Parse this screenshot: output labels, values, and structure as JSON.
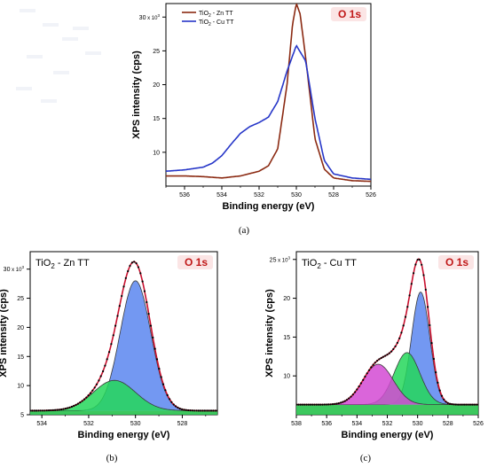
{
  "panel_captions": [
    "(a)",
    "(b)",
    "(c)"
  ],
  "colors": {
    "zn_line": "#8b2a12",
    "cu_line": "#2636c8",
    "fit_total": "#c8102e",
    "peak_main": "#5b86f0",
    "peak_green": "#25d75a",
    "peak_magenta": "#d44ad4",
    "baseline_green": "#28c24c",
    "o1s_text": "#c01818",
    "o1s_bg": "#fbe5e5"
  },
  "chart_data": [
    {
      "id": "a",
      "type": "line",
      "title": "",
      "label": "O 1s",
      "xlabel": "Binding energy (eV)",
      "ylabel": "XPS intensity (cps)",
      "y_multiplier": "x 10",
      "y_exponent": "3",
      "xlim": [
        537,
        526
      ],
      "ylim": [
        5,
        32
      ],
      "x_ticks": [
        536,
        534,
        532,
        530,
        528,
        526
      ],
      "y_ticks": [
        10,
        15,
        20,
        25,
        30
      ],
      "legend": [
        {
          "name": "TiO2 - Zn TT",
          "base": "TiO",
          "sub": "2",
          "rest": " - Zn TT",
          "color": "#8b2a12"
        },
        {
          "name": "TiO2 - Cu TT",
          "base": "TiO",
          "sub": "2",
          "rest": " - Cu TT",
          "color": "#2636c8"
        }
      ],
      "series": [
        {
          "name": "TiO2 - Zn TT",
          "color": "#8b2a12",
          "x": [
            537,
            536,
            535,
            534,
            533,
            532,
            531.5,
            531,
            530.5,
            530.2,
            530,
            529.8,
            529.5,
            529,
            528.5,
            528,
            527,
            526
          ],
          "y": [
            6.5,
            6.5,
            6.4,
            6.2,
            6.5,
            7.2,
            8.0,
            10.5,
            20.0,
            29.0,
            32.0,
            30.5,
            24.0,
            12.0,
            7.5,
            6.2,
            5.8,
            5.7
          ]
        },
        {
          "name": "TiO2 - Cu TT",
          "color": "#2636c8",
          "x": [
            537,
            536,
            535,
            534.5,
            534,
            533.5,
            533,
            532.5,
            532,
            531.5,
            531,
            530.5,
            530,
            529.5,
            529,
            528.5,
            528,
            527,
            526
          ],
          "y": [
            7.2,
            7.4,
            7.8,
            8.4,
            9.5,
            11.2,
            12.8,
            13.8,
            14.4,
            15.2,
            17.5,
            22.0,
            25.8,
            23.5,
            15.0,
            8.8,
            6.8,
            6.2,
            6.0
          ]
        }
      ]
    },
    {
      "id": "b",
      "type": "area",
      "title": "",
      "label": "O 1s",
      "sample": {
        "base": "TiO",
        "sub": "2",
        "rest": " - Zn TT"
      },
      "xlabel": "Binding energy (eV)",
      "ylabel": "XPS intensity (cps)",
      "y_multiplier": "x 10",
      "y_exponent": "3",
      "xlim": [
        534.5,
        526.5
      ],
      "ylim": [
        5,
        33
      ],
      "x_ticks": [
        534,
        532,
        530,
        528
      ],
      "y_ticks": [
        5,
        10,
        15,
        20,
        25,
        30
      ],
      "background": 5.7,
      "peaks": [
        {
          "name": "main",
          "center": 530.0,
          "height": 22.3,
          "sigma": 0.65,
          "color": "#5b86f0"
        },
        {
          "name": "secondary",
          "center": 530.9,
          "height": 5.2,
          "sigma": 0.9,
          "color": "#25d75a"
        }
      ]
    },
    {
      "id": "c",
      "type": "area",
      "title": "",
      "label": "O 1s",
      "sample": {
        "base": "TiO",
        "sub": "2",
        "rest": " - Cu TT"
      },
      "xlabel": "Binding energy (eV)",
      "ylabel": "XPS intensity (cps)",
      "y_multiplier": "x 10",
      "y_exponent": "3",
      "xlim": [
        538,
        526
      ],
      "ylim": [
        5,
        26
      ],
      "x_ticks": [
        538,
        536,
        534,
        532,
        530,
        528,
        526
      ],
      "y_ticks": [
        10,
        15,
        20,
        25
      ],
      "background": 6.3,
      "peaks": [
        {
          "name": "main",
          "center": 529.8,
          "height": 14.5,
          "sigma": 0.6,
          "color": "#5b86f0"
        },
        {
          "name": "secondary",
          "center": 530.7,
          "height": 6.7,
          "sigma": 0.85,
          "color": "#25d75a"
        },
        {
          "name": "tertiary",
          "center": 532.6,
          "height": 5.2,
          "sigma": 1.0,
          "color": "#d44ad4"
        }
      ]
    }
  ]
}
